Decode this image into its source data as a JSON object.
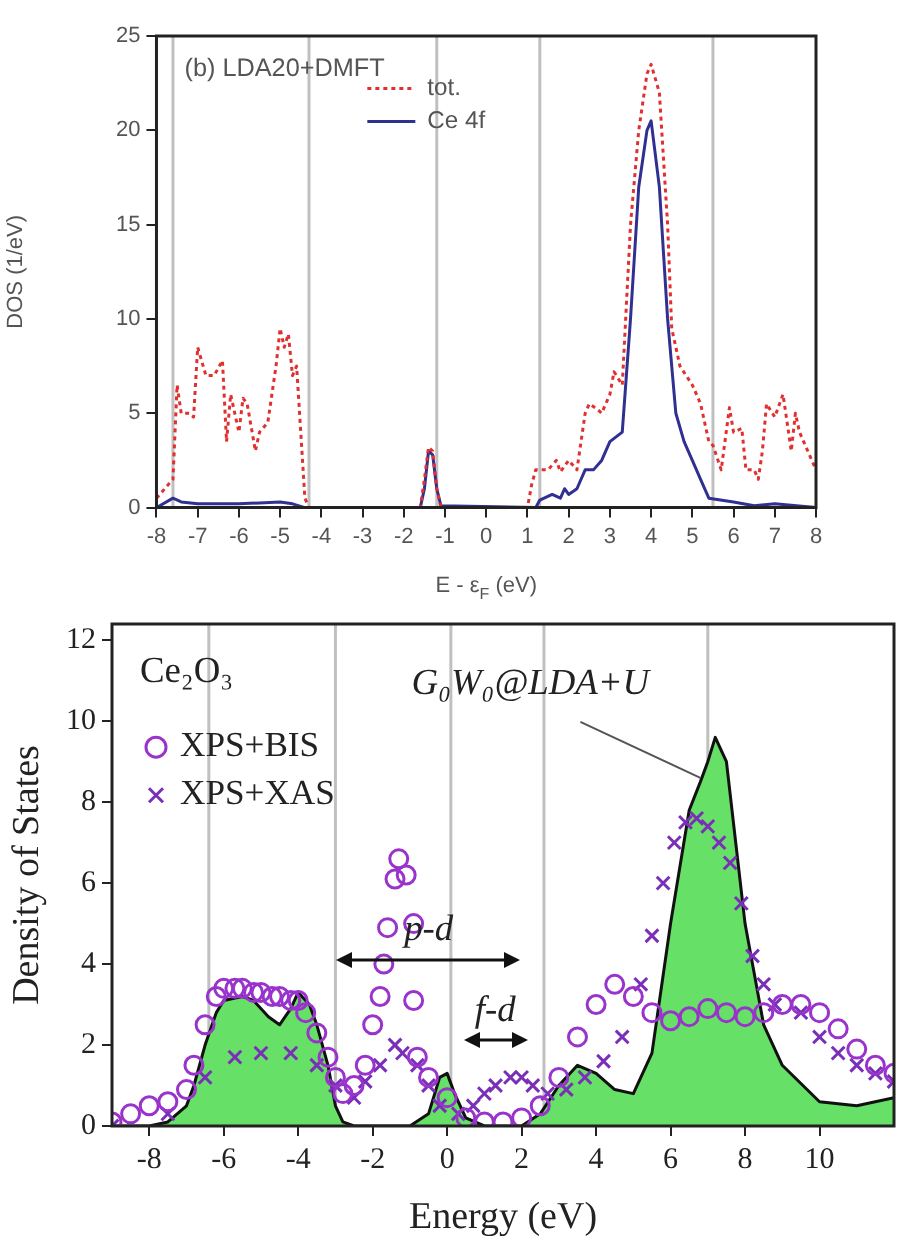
{
  "chart_data": [
    {
      "type": "line",
      "xlabel": "E - ε$_{F}$ (eV)",
      "ylabel": "DOS (1/eV)",
      "xlim": [
        -8,
        8
      ],
      "xticks": [
        -8,
        -7,
        -6,
        -5,
        -4,
        -3,
        -2,
        -1,
        0,
        1,
        2,
        3,
        4,
        5,
        6,
        7,
        8
      ],
      "ylim": [
        0,
        25
      ],
      "yticks": [
        0,
        5,
        10,
        15,
        20,
        25
      ],
      "grid": false,
      "legend": "top",
      "annotations": [
        "(b) LDA20+DMFT"
      ],
      "ref_lines": [
        {
          "axis": "x",
          "value": -7.6,
          "color": "#c0c0c0"
        },
        {
          "axis": "x",
          "value": -4.3,
          "color": "#c0c0c0"
        },
        {
          "axis": "x",
          "value": -1.2,
          "color": "#c0c0c0"
        },
        {
          "axis": "x",
          "value": 1.3,
          "color": "#c0c0c0"
        },
        {
          "axis": "x",
          "value": 5.5,
          "color": "#c0c0c0"
        }
      ],
      "series": [
        {
          "name": "tot.",
          "color": "#e03030",
          "line_style": "dotted",
          "marker": "none",
          "x": [
            -8,
            -7.8,
            -7.6,
            -7.5,
            -7.4,
            -7.2,
            -7.1,
            -7.0,
            -6.8,
            -6.6,
            -6.4,
            -6.3,
            -6.2,
            -6.0,
            -5.9,
            -5.8,
            -5.6,
            -5.5,
            -5.3,
            -5.1,
            -5.0,
            -4.9,
            -4.8,
            -4.7,
            -4.6,
            -4.5,
            -4.4,
            -4.3,
            -1.6,
            -1.5,
            -1.4,
            -1.3,
            -1.2,
            -1.1,
            1.0,
            1.1,
            1.2,
            1.5,
            1.7,
            1.8,
            2.0,
            2.2,
            2.4,
            2.5,
            2.7,
            2.8,
            3.0,
            3.1,
            3.3,
            3.5,
            3.7,
            3.9,
            4.0,
            4.2,
            4.4,
            4.5,
            4.7,
            5.0,
            5.2,
            5.4,
            5.5,
            5.7,
            5.9,
            6.0,
            6.2,
            6.3,
            6.5,
            6.6,
            6.7,
            6.8,
            7.0,
            7.2,
            7.4,
            7.5,
            7.6,
            7.7,
            7.8,
            8.0
          ],
          "values": [
            0.5,
            1,
            1.5,
            6.5,
            5,
            5,
            4.8,
            8.5,
            7,
            7,
            7.8,
            3.5,
            6,
            4,
            5.8,
            5.5,
            3,
            4,
            4.5,
            7.5,
            9.5,
            8.5,
            9.2,
            7,
            7.5,
            4,
            0.5,
            0,
            0,
            1.5,
            3.2,
            3,
            1,
            0,
            0,
            1.2,
            2,
            2,
            2.5,
            1.9,
            2.5,
            2,
            5,
            5.5,
            5.2,
            5,
            6,
            7.2,
            6.5,
            15,
            20,
            23,
            23.5,
            22,
            15,
            9.5,
            7.5,
            6.5,
            5.5,
            3.5,
            3.3,
            2,
            5.3,
            4,
            4.2,
            2,
            2,
            1.5,
            3,
            5.5,
            4.8,
            6,
            3,
            5,
            4,
            3.5,
            3,
            2
          ]
        },
        {
          "name": "Ce 4f",
          "color": "#303090",
          "line_style": "solid",
          "marker": "none",
          "x": [
            -8,
            -7.6,
            -7.4,
            -7,
            -6,
            -5,
            -4.7,
            -4.4,
            -1.6,
            -1.5,
            -1.4,
            -1.3,
            -1.2,
            -1.1,
            1.2,
            1.3,
            1.6,
            1.8,
            1.9,
            2.0,
            2.2,
            2.4,
            2.6,
            2.8,
            3.0,
            3.3,
            3.5,
            3.7,
            3.9,
            4.0,
            4.2,
            4.4,
            4.6,
            4.8,
            5.0,
            5.2,
            5.4,
            6.0,
            6.5,
            7.0,
            8.0
          ],
          "values": [
            0,
            0.5,
            0.3,
            0.2,
            0.2,
            0.3,
            0.2,
            0,
            0,
            1,
            3,
            2.8,
            1,
            0.1,
            0,
            0.4,
            0.7,
            0.5,
            1,
            0.7,
            1,
            2,
            2,
            2.5,
            3.5,
            4,
            10,
            17,
            20,
            20.5,
            17,
            10,
            5,
            3.5,
            2.5,
            1.5,
            0.5,
            0.3,
            0.1,
            0.2,
            0
          ]
        }
      ]
    },
    {
      "type": "area",
      "xlabel": "Energy (eV)",
      "ylabel": "Density of States",
      "xlim": [
        -9,
        12
      ],
      "xticks": [
        -8,
        -6,
        -4,
        -2,
        0,
        2,
        4,
        6,
        8,
        10
      ],
      "ylim": [
        0,
        12.4
      ],
      "yticks": [
        0,
        2,
        4,
        6,
        8,
        10,
        12
      ],
      "grid": false,
      "legend": "top left",
      "annotations": [
        "Ce₂O₃",
        {
          "text": "G₀W₀@LDA+U",
          "x": 6.8,
          "y": 8.6
        },
        "p-d",
        "f-d"
      ],
      "ref_lines": [
        {
          "axis": "x",
          "value": -6.4,
          "color": "#c0c0c0"
        },
        {
          "axis": "x",
          "value": -3,
          "color": "#c0c0c0"
        },
        {
          "axis": "x",
          "value": 0.1,
          "color": "#c0c0c0"
        },
        {
          "axis": "x",
          "value": 2.6,
          "color": "#c0c0c0"
        },
        {
          "axis": "x",
          "value": 7.0,
          "color": "#c0c0c0"
        }
      ],
      "series": [
        {
          "color": "#66e066",
          "marker": "none",
          "x": [
            -9,
            -8,
            -7.5,
            -7,
            -6.8,
            -6.5,
            -6.2,
            -6,
            -5.5,
            -5.2,
            -4.8,
            -4.5,
            -4.2,
            -4,
            -3.7,
            -3.5,
            -3.2,
            -3,
            -2.8,
            -2.5,
            -1,
            -0.5,
            -0.2,
            0,
            0.2,
            0.5,
            1,
            2,
            2.5,
            3,
            3.5,
            4,
            4.5,
            5,
            5.5,
            6,
            6.5,
            6.8,
            7,
            7.2,
            7.5,
            8,
            8.5,
            9,
            10,
            11,
            12
          ],
          "values": [
            0,
            0,
            0.1,
            0.5,
            1,
            2,
            2.8,
            3.1,
            3.2,
            3.1,
            2.7,
            2.5,
            2.9,
            3.3,
            3,
            2.5,
            1.5,
            0.5,
            0.1,
            0,
            0,
            0.3,
            1.2,
            1.3,
            0.8,
            0.2,
            0,
            0,
            0.3,
            1,
            1.5,
            1.3,
            0.9,
            0.8,
            1.8,
            5,
            7.8,
            8.5,
            9,
            9.6,
            9,
            5,
            2.5,
            1.5,
            0.6,
            0.5,
            0.7
          ]
        },
        {
          "name": "XPS+BIS",
          "type": "scatter",
          "color": "#9933cc",
          "marker": "circle",
          "x": [
            -9,
            -8.5,
            -8,
            -7.5,
            -7,
            -6.8,
            -6.5,
            -6.2,
            -6,
            -5.7,
            -5.5,
            -5.2,
            -5,
            -4.7,
            -4.5,
            -4.2,
            -4,
            -3.8,
            -3.5,
            -3.2,
            -3,
            -2.8,
            -2.5,
            -2.2,
            -2,
            -1.8,
            -1.7,
            -1.6,
            -1.4,
            -1.3,
            -1.1,
            -0.9,
            -0.9,
            -0.8,
            -0.5,
            0,
            0.5,
            1,
            1.5,
            2,
            2.5,
            3,
            3.5,
            4,
            4.5,
            5,
            5.5,
            6,
            6.5,
            7,
            7.5,
            8,
            8.5,
            9,
            9.5,
            10,
            10.5,
            11,
            11.5,
            12
          ],
          "values": [
            0.1,
            0.3,
            0.5,
            0.6,
            0.9,
            1.5,
            2.5,
            3.2,
            3.4,
            3.4,
            3.4,
            3.3,
            3.3,
            3.2,
            3.2,
            3.1,
            3.1,
            2.8,
            2.3,
            1.7,
            1.2,
            0.8,
            1,
            1.5,
            2.5,
            3.2,
            4,
            4.9,
            6.1,
            6.6,
            6.2,
            5,
            3.1,
            1.7,
            1.2,
            0.7,
            0.2,
            0.1,
            0.1,
            0.2,
            0.5,
            1.2,
            2.2,
            3,
            3.5,
            3.2,
            2.8,
            2.6,
            2.7,
            2.9,
            2.8,
            2.7,
            2.8,
            3,
            3,
            2.8,
            2.4,
            1.9,
            1.5,
            1.3
          ]
        },
        {
          "name": "XPS+XAS",
          "type": "scatter",
          "color": "#7a2fb8",
          "marker": "cross",
          "x": [
            -9,
            -7.5,
            -6.5,
            -5.7,
            -5,
            -4.2,
            -3.5,
            -3,
            -2.5,
            -2.2,
            -1.8,
            -1.4,
            -1.2,
            -0.8,
            -0.5,
            -0.2,
            0.3,
            0.7,
            1.0,
            1.3,
            1.7,
            2.0,
            2.3,
            2.7,
            3.2,
            3.7,
            4.2,
            4.7,
            5.2,
            5.5,
            5.8,
            6.1,
            6.4,
            6.7,
            7,
            7.3,
            7.6,
            7.9,
            8.2,
            8.5,
            8.8,
            9.5,
            10,
            10.5,
            11,
            11.5,
            12
          ],
          "values": [
            0,
            0.3,
            1.2,
            1.7,
            1.8,
            1.8,
            1.5,
            1,
            0.7,
            1.1,
            1.5,
            2,
            1.8,
            1.5,
            1,
            0.5,
            0.3,
            0.5,
            0.8,
            1,
            1.2,
            1.2,
            1,
            0.8,
            0.9,
            1.2,
            1.6,
            2.2,
            3.5,
            4.7,
            6,
            7,
            7.5,
            7.6,
            7.4,
            7,
            6.5,
            5.5,
            4.2,
            3.5,
            3,
            2.8,
            2.2,
            1.8,
            1.5,
            1.3,
            1.1
          ]
        }
      ]
    }
  ]
}
